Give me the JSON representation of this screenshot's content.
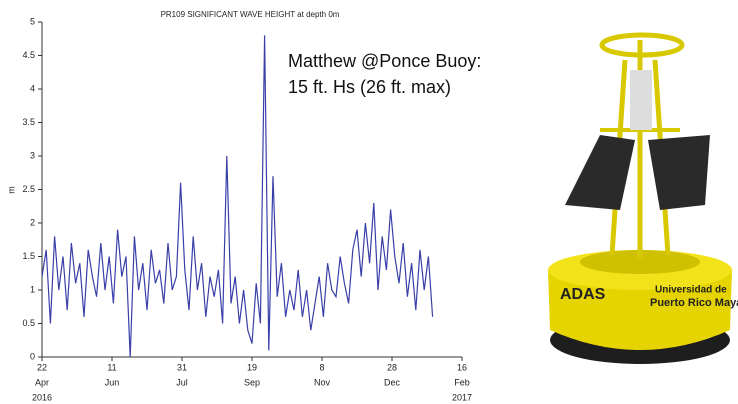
{
  "chart_data": {
    "type": "line",
    "title": "PR109 SIGNIFICANT WAVE HEIGHT at depth 0m",
    "y_label": "m",
    "annotation": [
      "Matthew @Ponce Buoy:",
      "15 ft. Hs (26 ft. max)"
    ],
    "x": [
      "2016-04-22",
      "2016-04-25",
      "2016-04-28",
      "2016-05-01",
      "2016-05-04",
      "2016-05-07",
      "2016-05-10",
      "2016-05-13",
      "2016-05-16",
      "2016-05-19",
      "2016-05-22",
      "2016-05-25",
      "2016-05-28",
      "2016-05-31",
      "2016-06-03",
      "2016-06-06",
      "2016-06-09",
      "2016-06-12",
      "2016-06-15",
      "2016-06-18",
      "2016-06-21",
      "2016-06-24",
      "2016-06-27",
      "2016-06-30",
      "2016-07-03",
      "2016-07-06",
      "2016-07-09",
      "2016-07-12",
      "2016-07-15",
      "2016-07-18",
      "2016-07-21",
      "2016-07-24",
      "2016-07-27",
      "2016-07-30",
      "2016-08-02",
      "2016-08-05",
      "2016-08-08",
      "2016-08-11",
      "2016-08-14",
      "2016-08-17",
      "2016-08-20",
      "2016-08-23",
      "2016-08-26",
      "2016-08-29",
      "2016-09-01",
      "2016-09-04",
      "2016-09-07",
      "2016-09-10",
      "2016-09-13",
      "2016-09-16",
      "2016-09-19",
      "2016-09-22",
      "2016-09-25",
      "2016-09-28",
      "2016-10-01",
      "2016-10-04",
      "2016-10-07",
      "2016-10-10",
      "2016-10-13",
      "2016-10-16",
      "2016-10-19",
      "2016-10-22",
      "2016-10-25",
      "2016-10-28",
      "2016-10-31",
      "2016-11-03",
      "2016-11-06",
      "2016-11-09",
      "2016-11-12",
      "2016-11-15",
      "2016-11-18",
      "2016-11-21",
      "2016-11-24",
      "2016-11-27",
      "2016-11-30",
      "2016-12-03",
      "2016-12-06",
      "2016-12-09",
      "2016-12-12",
      "2016-12-15",
      "2016-12-18",
      "2016-12-21",
      "2016-12-24",
      "2016-12-27",
      "2016-12-30",
      "2017-01-02",
      "2017-01-05",
      "2017-01-08",
      "2017-01-11",
      "2017-01-14",
      "2017-01-17",
      "2017-01-20",
      "2017-01-23",
      "2017-01-26"
    ],
    "series": [
      {
        "color": "#3a3fa8",
        "values": [
          1.2,
          1.6,
          0.5,
          1.8,
          1.0,
          1.5,
          0.7,
          1.7,
          1.1,
          1.4,
          0.6,
          1.6,
          1.2,
          0.9,
          1.7,
          1.0,
          1.5,
          0.8,
          1.9,
          1.2,
          1.5,
          0.0,
          1.8,
          1.0,
          1.4,
          0.7,
          1.6,
          1.1,
          1.3,
          0.8,
          1.7,
          1.0,
          1.2,
          2.6,
          1.3,
          0.7,
          1.8,
          1.0,
          1.4,
          0.6,
          1.2,
          0.9,
          1.3,
          0.5,
          3.0,
          0.8,
          1.2,
          0.5,
          1.0,
          0.4,
          0.2,
          1.1,
          0.5,
          4.8,
          0.1,
          2.7,
          0.9,
          1.4,
          0.6,
          1.0,
          0.7,
          1.3,
          0.6,
          1.0,
          0.4,
          0.8,
          1.2,
          0.6,
          1.4,
          1.0,
          0.9,
          1.5,
          1.1,
          0.8,
          1.6,
          1.9,
          1.2,
          2.0,
          1.4,
          2.3,
          1.0,
          1.8,
          1.3,
          2.2,
          1.5,
          1.1,
          1.7,
          0.9,
          1.4,
          0.7,
          1.6,
          1.0,
          1.5,
          0.6
        ]
      }
    ],
    "xlim": [
      "2016-04-22",
      "2017-02-16"
    ],
    "xticks": [
      {
        "value": "2016-04-22",
        "label": [
          "22",
          "Apr",
          "2016"
        ]
      },
      {
        "value": "2016-06-11",
        "label": [
          "11",
          "Jun"
        ]
      },
      {
        "value": "2016-07-31",
        "label": [
          "31",
          "Jul"
        ]
      },
      {
        "value": "2016-09-19",
        "label": [
          "19",
          "Sep"
        ]
      },
      {
        "value": "2016-11-08",
        "label": [
          "8",
          "Nov"
        ]
      },
      {
        "value": "2016-12-28",
        "label": [
          "28",
          "Dec"
        ]
      },
      {
        "value": "2017-02-16",
        "label": [
          "16",
          "Feb",
          "2017"
        ]
      }
    ],
    "ylim": [
      0,
      5
    ],
    "yticks": [
      0,
      0.5,
      1,
      1.5,
      2,
      2.5,
      3,
      3.5,
      4,
      4.5,
      5
    ]
  }
}
